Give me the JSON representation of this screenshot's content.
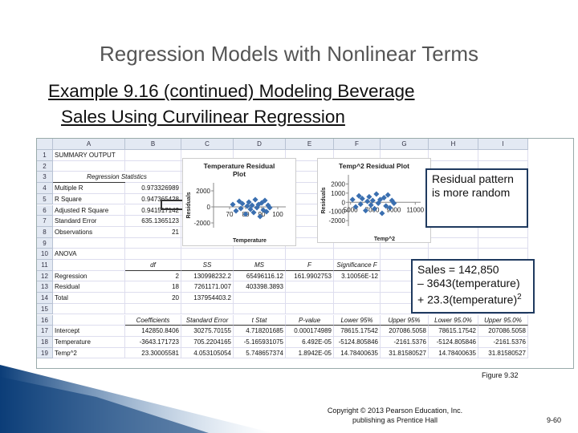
{
  "header": {
    "title": "Regression Models with Nonlinear Terms",
    "subtitle_lines": [
      "Example 9.16 (continued)  Modeling Beverage",
      "Sales Using Curvilinear Regression"
    ]
  },
  "sheet": {
    "columns": [
      "A",
      "B",
      "C",
      "D",
      "E",
      "F",
      "G",
      "H",
      "I"
    ],
    "rows": [
      {
        "n": 1,
        "cells": [
          "SUMMARY OUTPUT"
        ]
      },
      {
        "n": 2,
        "cells": []
      },
      {
        "n": 3,
        "cells": [
          "Regression Statistics"
        ]
      },
      {
        "n": 4,
        "cells": [
          "Multiple R",
          "0.973326989"
        ]
      },
      {
        "n": 5,
        "cells": [
          "R Square",
          "0.947365428"
        ]
      },
      {
        "n": 6,
        "cells": [
          "Adjusted R Square",
          "0.941517142"
        ]
      },
      {
        "n": 7,
        "cells": [
          "Standard Error",
          "635.1365123"
        ]
      },
      {
        "n": 8,
        "cells": [
          "Observations",
          "21"
        ]
      },
      {
        "n": 9,
        "cells": []
      },
      {
        "n": 10,
        "cells": [
          "ANOVA"
        ]
      },
      {
        "n": 11,
        "cells": [
          null,
          "df",
          "SS",
          "MS",
          "F",
          "Significance F"
        ]
      },
      {
        "n": 12,
        "cells": [
          "Regression",
          "2",
          "130998232.2",
          "65496116.12",
          "161.9902753",
          "3.10056E-12"
        ]
      },
      {
        "n": 13,
        "cells": [
          "Residual",
          "18",
          "7261171.007",
          "403398.3893"
        ]
      },
      {
        "n": 14,
        "cells": [
          "Total",
          "20",
          "137954403.2"
        ]
      },
      {
        "n": 15,
        "cells": []
      },
      {
        "n": 16,
        "cells": [
          null,
          "Coefficients",
          "Standard Error",
          "t Stat",
          "P-value",
          "Lower 95%",
          "Upper 95%",
          "Lower 95.0%",
          "Upper 95.0%"
        ]
      },
      {
        "n": 17,
        "cells": [
          "Intercept",
          "142850.8406",
          "30275.70155",
          "4.718201685",
          "0.000174989",
          "78615.17542",
          "207086.5058",
          "78615.17542",
          "207086.5058"
        ]
      },
      {
        "n": 18,
        "cells": [
          "Temperature",
          "-3643.171723",
          "705.2204165",
          "-5.165931075",
          "6.492E-05",
          "-5124.805846",
          "-2161.5376",
          "-5124.805846",
          "-2161.5376"
        ]
      },
      {
        "n": 19,
        "cells": [
          "Temp^2",
          "23.30005581",
          "4.053105054",
          "5.748657374",
          "1.8942E-05",
          "14.78400635",
          "31.81580527",
          "14.78400635",
          "31.81580527"
        ]
      }
    ]
  },
  "plots": [
    {
      "title": "Temperature Residual Plot",
      "x_label": "Temperature",
      "y_label": "Residuals",
      "xlim": [
        60,
        105
      ],
      "ylim": [
        -2600,
        3000
      ],
      "xticks": [
        70,
        80,
        90,
        100
      ],
      "yticks": [
        2000,
        0,
        -2000
      ],
      "points": {
        "x": [
          72,
          74,
          76,
          77,
          78,
          80,
          81,
          82,
          83,
          84,
          85,
          86,
          87,
          88,
          89,
          90,
          91,
          92,
          93,
          94,
          95
        ],
        "y": [
          300,
          -500,
          700,
          -200,
          400,
          -900,
          100,
          600,
          -300,
          200,
          -700,
          900,
          -100,
          300,
          -1200,
          500,
          -400,
          800,
          -600,
          200,
          -100
        ]
      }
    },
    {
      "title": "Temp^2  Residual Plot",
      "x_label": "Temp^2",
      "y_label": "Residuals",
      "xlim": [
        4800,
        11500
      ],
      "ylim": [
        -2600,
        3000
      ],
      "xticks": [
        5000,
        7000,
        9000,
        11000
      ],
      "yticks": [
        2000,
        1000,
        0,
        -1000,
        -2000
      ],
      "points": {
        "x": [
          5184,
          5476,
          5776,
          5929,
          6084,
          6400,
          6561,
          6724,
          6889,
          7056,
          7225,
          7396,
          7569,
          7744,
          7921,
          8100,
          8281,
          8464,
          8649,
          8836,
          9025
        ],
        "y": [
          300,
          -500,
          700,
          -200,
          400,
          -900,
          100,
          600,
          -300,
          200,
          -700,
          900,
          -100,
          300,
          -1200,
          500,
          -400,
          800,
          -600,
          200,
          -100
        ]
      }
    }
  ],
  "callouts": {
    "residual_note": "Residual pattern is more random",
    "equation": {
      "lines": [
        "Sales = 142,850",
        "– 3643(temperature)",
        "+  23.3(temperature)"
      ],
      "superscript": "2"
    }
  },
  "footer": {
    "figure": "Figure 9.32",
    "copyright_lines": [
      "Copyright © 2013 Pearson Education, Inc.",
      "publishing as Prentice Hall"
    ],
    "page": "9-60"
  }
}
